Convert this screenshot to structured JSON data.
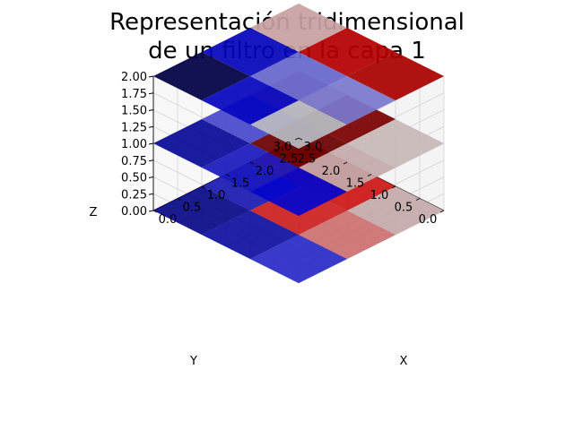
{
  "chart_data": {
    "type": "voxel-3d",
    "title": [
      "Representación tridimensional",
      "de un filtro en la capa 1"
    ],
    "xlabel": "X",
    "ylabel": "Y",
    "zlabel": "Z",
    "xlim": [
      0,
      3
    ],
    "ylim": [
      0,
      3
    ],
    "zlim": [
      0,
      2
    ],
    "x_ticks": [
      "0.0",
      "0.5",
      "1.0",
      "1.5",
      "2.0",
      "2.5",
      "3.0"
    ],
    "y_ticks": [
      "0.0",
      "0.5",
      "1.0",
      "1.5",
      "2.0",
      "2.5",
      "3.0"
    ],
    "z_ticks": [
      "0.00",
      "0.25",
      "0.50",
      "0.75",
      "1.00",
      "1.25",
      "1.50",
      "1.75",
      "2.00"
    ],
    "grid": true,
    "layers": [
      {
        "z": 0,
        "colors": [
          [
            "#2a2ac8",
            "#1010a0",
            "#0a0a88"
          ],
          [
            "#cc7070",
            "#cc2020",
            "#1a1ab0"
          ],
          [
            "#c4aaaa",
            "#cc1515",
            "#bb0000"
          ]
        ]
      },
      {
        "z": 1,
        "colors": [
          [
            "#0505cc",
            "#1a1abb",
            "#0a0a99"
          ],
          [
            "#c4aaaa",
            "#6a0000",
            "#4848cc"
          ],
          [
            "#c8b8b8",
            "#7a0000",
            "#c89494"
          ]
        ]
      },
      {
        "z": 2,
        "colors": [
          [
            "#b8bac2",
            "#0505c0",
            "#000044"
          ],
          [
            "#7878cc",
            "#6666cc",
            "#0505bb"
          ],
          [
            "#aa0000",
            "#b50000",
            "#c8a0a0"
          ]
        ]
      }
    ]
  }
}
